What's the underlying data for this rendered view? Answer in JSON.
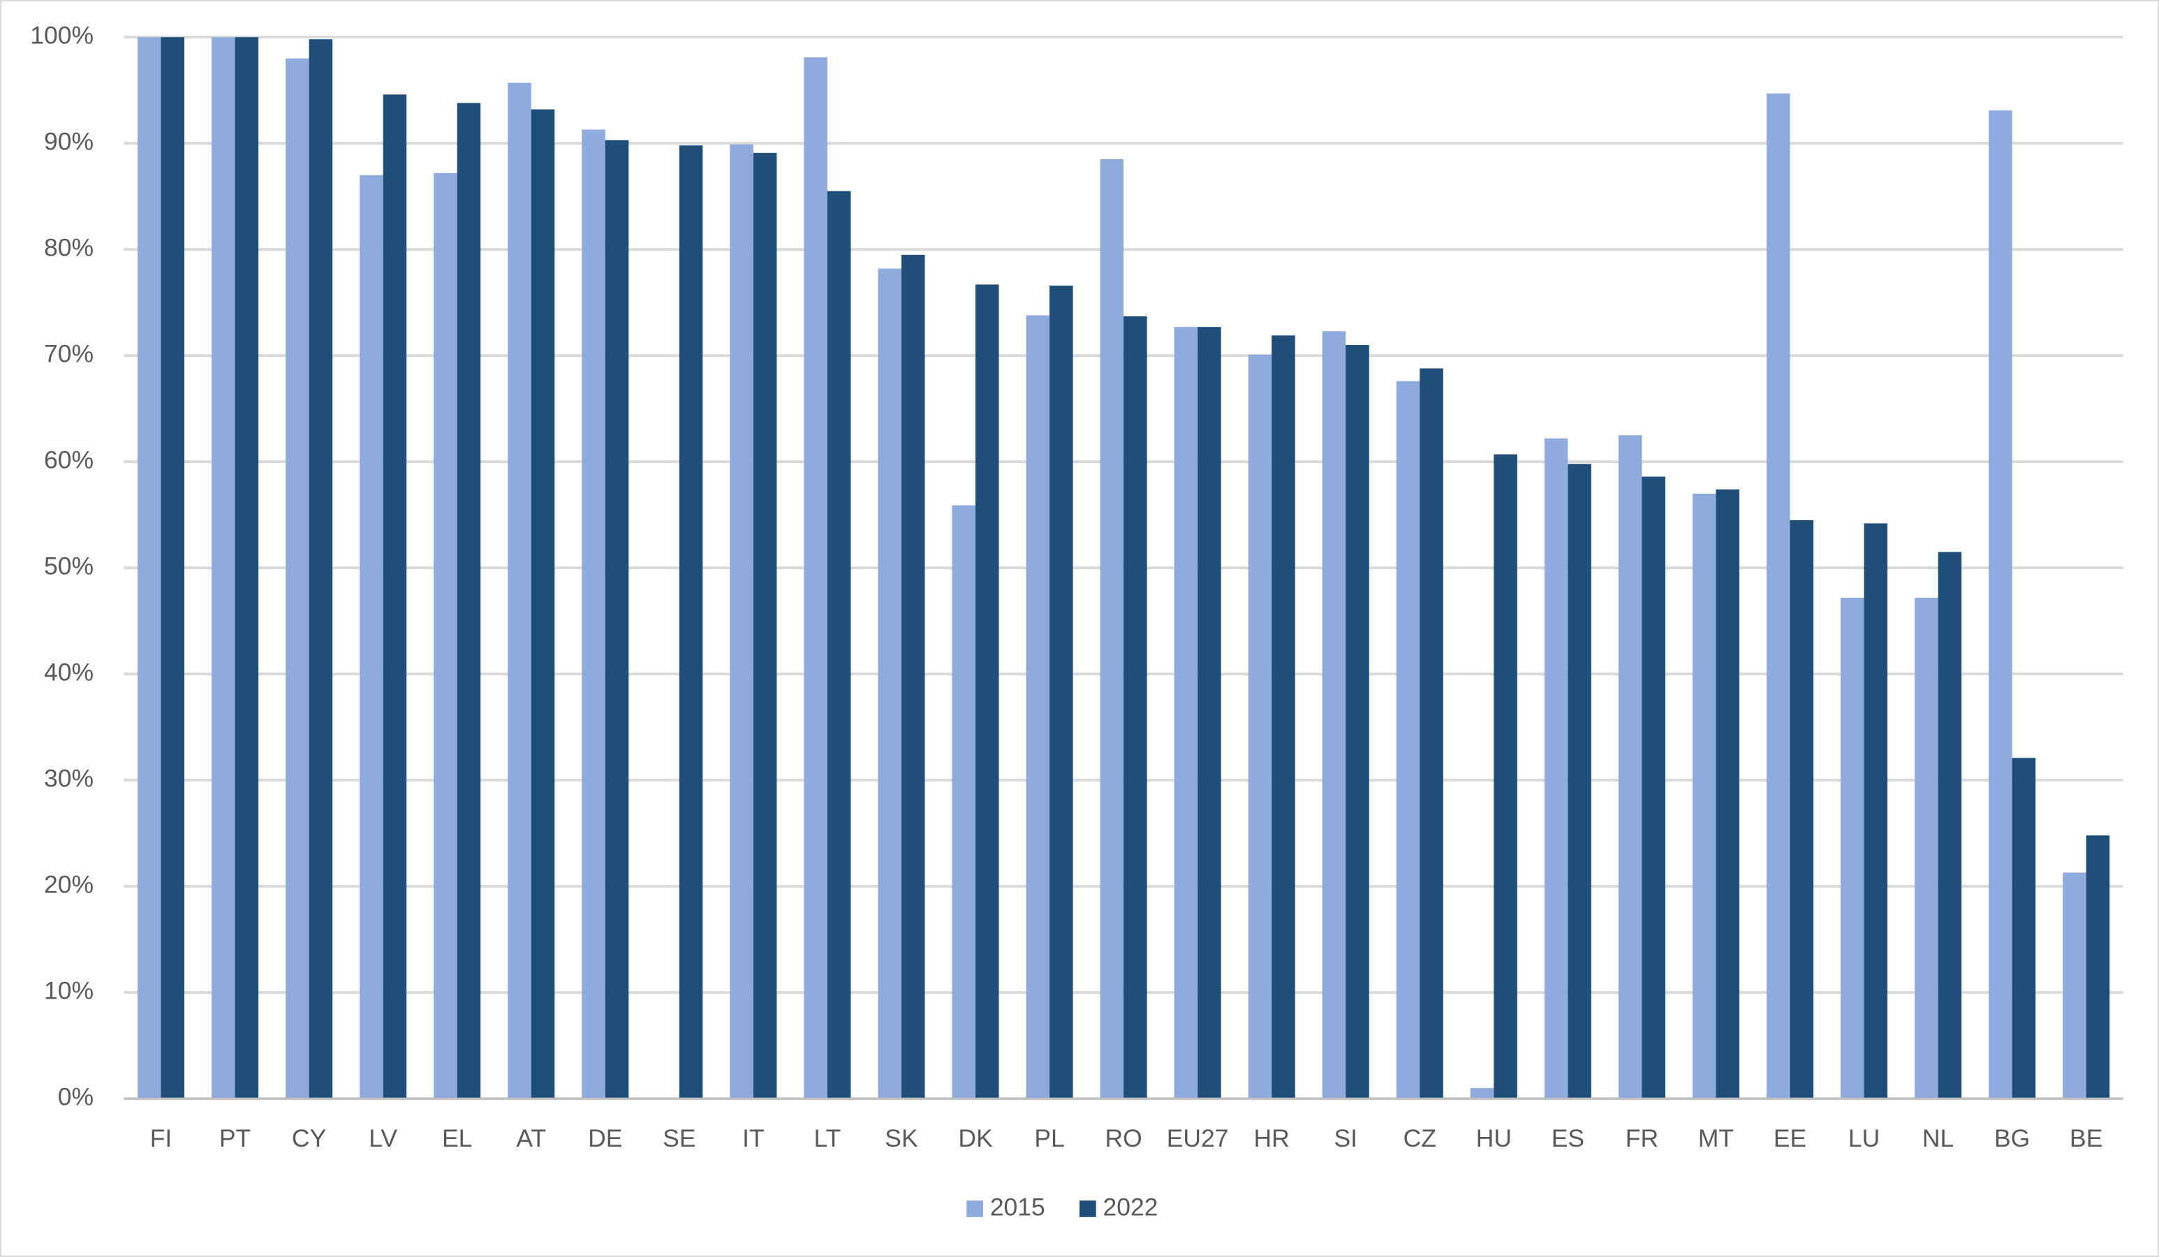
{
  "chart_data": {
    "type": "bar",
    "categories": [
      "FI",
      "PT",
      "CY",
      "LV",
      "EL",
      "AT",
      "DE",
      "SE",
      "IT",
      "LT",
      "SK",
      "DK",
      "PL",
      "RO",
      "EU27",
      "HR",
      "SI",
      "CZ",
      "HU",
      "ES",
      "FR",
      "MT",
      "EE",
      "LU",
      "NL",
      "BG",
      "BE"
    ],
    "series": [
      {
        "name": "2015",
        "color": "#8faadc",
        "values": [
          100,
          100,
          98,
          87,
          87.2,
          95.7,
          91.3,
          null,
          89.9,
          98.1,
          78.2,
          55.9,
          73.8,
          88.5,
          72.7,
          70.1,
          72.3,
          67.6,
          1.0,
          62.2,
          62.5,
          57.0,
          94.7,
          47.2,
          47.2,
          93.1,
          21.3
        ]
      },
      {
        "name": "2022",
        "color": "#1f4e79",
        "values": [
          100,
          100,
          99.8,
          94.6,
          93.8,
          93.2,
          90.3,
          89.8,
          89.1,
          85.5,
          79.5,
          76.7,
          76.6,
          73.7,
          72.7,
          71.9,
          71.0,
          68.8,
          60.7,
          59.8,
          58.6,
          57.4,
          54.5,
          54.2,
          51.5,
          32.1,
          24.8
        ]
      }
    ],
    "ylim": [
      0,
      100
    ],
    "yticks": [
      {
        "value": 0,
        "label": "0%"
      },
      {
        "value": 10,
        "label": "10%"
      },
      {
        "value": 20,
        "label": "20%"
      },
      {
        "value": 30,
        "label": "30%"
      },
      {
        "value": 40,
        "label": "40%"
      },
      {
        "value": 50,
        "label": "50%"
      },
      {
        "value": 60,
        "label": "60%"
      },
      {
        "value": 70,
        "label": "70%"
      },
      {
        "value": 80,
        "label": "80%"
      },
      {
        "value": 90,
        "label": "90%"
      },
      {
        "value": 100,
        "label": "100%"
      }
    ],
    "grid": true,
    "legend": "bottom"
  }
}
